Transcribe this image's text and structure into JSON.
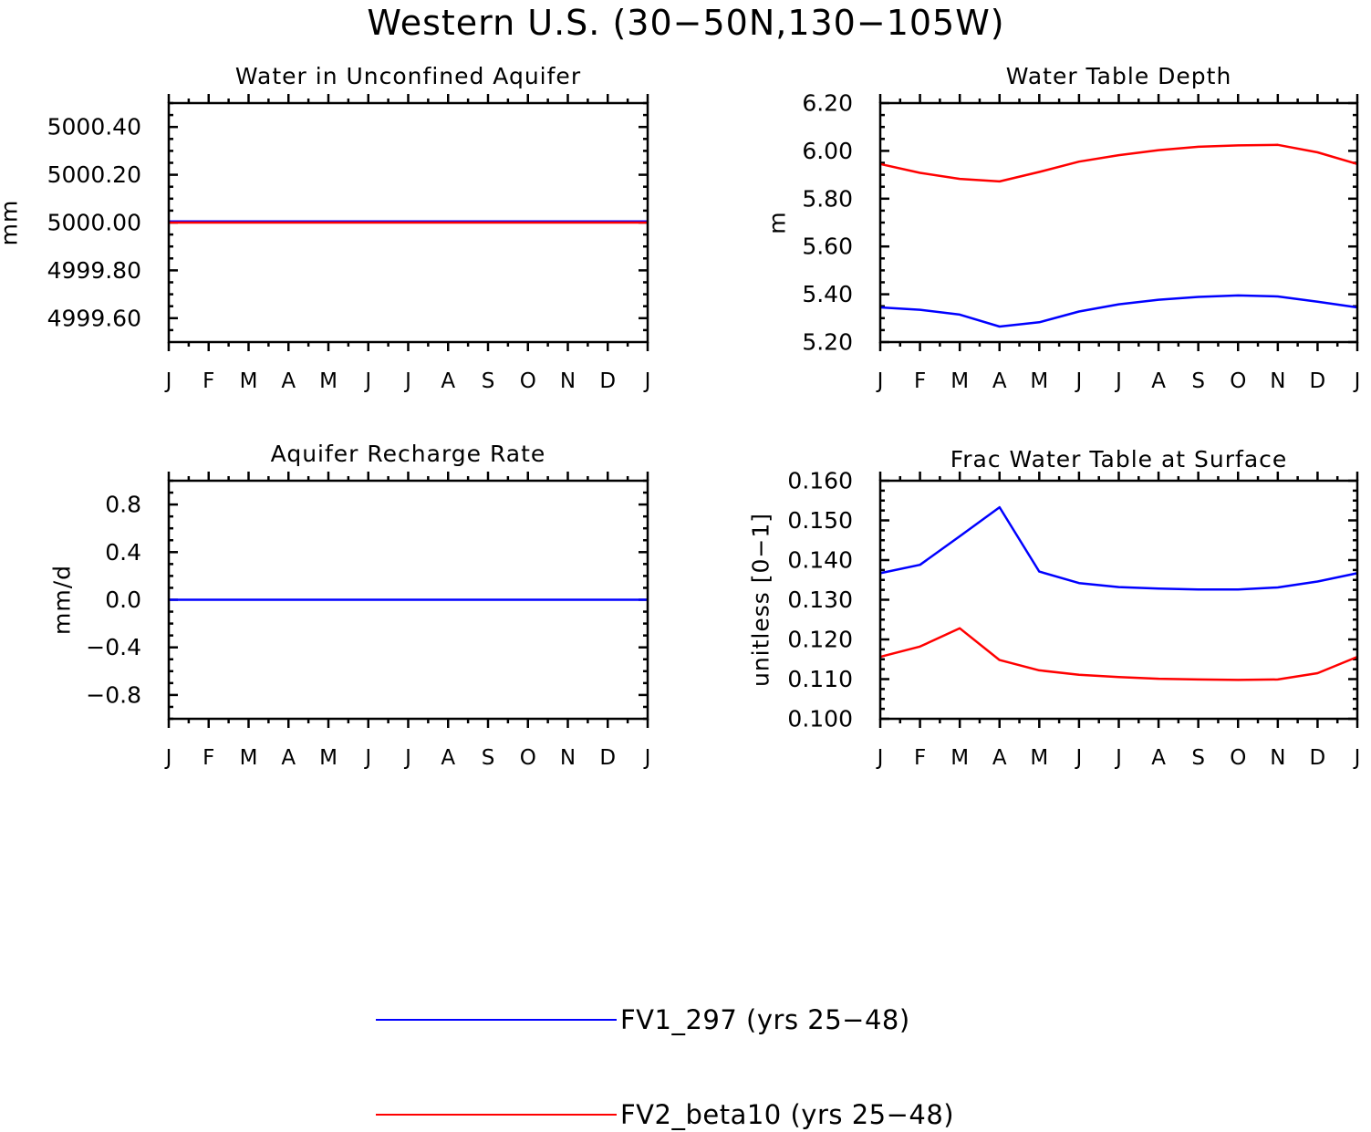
{
  "colors": {
    "series1": "#0000ff",
    "series2": "#ff0000",
    "axis": "#000000"
  },
  "chart_data": {
    "title": "Western U.S. (30−50N,130−105W)",
    "months": [
      "J",
      "F",
      "M",
      "A",
      "M",
      "J",
      "J",
      "A",
      "S",
      "O",
      "N",
      "D",
      "J"
    ],
    "legend": [
      {
        "label": "FV1_297 (yrs 25−48)",
        "color": "#0000ff"
      },
      {
        "label": "FV2_beta10 (yrs 25−48)",
        "color": "#ff0000"
      }
    ],
    "panels": [
      {
        "type": "line",
        "title": "Water in Unconfined Aquifer",
        "ylabel": "mm",
        "ylim": [
          4999.5,
          5000.5
        ],
        "yticks": [
          4999.6,
          4999.8,
          5000.0,
          5000.2,
          5000.4
        ],
        "yticklabels": [
          "4999.60",
          "4999.80",
          "5000.00",
          "5000.20",
          "5000.40"
        ],
        "series": [
          {
            "name": "FV1_297 (yrs 25-48)",
            "color": "#0000ff",
            "values": [
              5000.005,
              5000.005,
              5000.005,
              5000.005,
              5000.005,
              5000.005,
              5000.005,
              5000.005,
              5000.005,
              5000.005,
              5000.005,
              5000.005,
              5000.005
            ]
          },
          {
            "name": "FV2_beta10 (yrs 25-48)",
            "color": "#ff0000",
            "values": [
              5000.0,
              5000.0,
              5000.0,
              5000.0,
              5000.0,
              5000.0,
              5000.0,
              5000.0,
              5000.0,
              5000.0,
              5000.0,
              5000.0,
              5000.0
            ]
          }
        ]
      },
      {
        "type": "line",
        "title": "Water Table Depth",
        "ylabel": "m",
        "ylim": [
          5.2,
          6.2
        ],
        "yticks": [
          5.2,
          5.4,
          5.6,
          5.8,
          6.0,
          6.2
        ],
        "yticklabels": [
          "5.20",
          "5.40",
          "5.60",
          "5.80",
          "6.00",
          "6.20"
        ],
        "series": [
          {
            "name": "FV1_297 (yrs 25-48)",
            "color": "#0000ff",
            "values": [
              5.345,
              5.335,
              5.315,
              5.265,
              5.283,
              5.328,
              5.358,
              5.377,
              5.389,
              5.395,
              5.391,
              5.369,
              5.345
            ]
          },
          {
            "name": "FV2_beta10 (yrs 25-48)",
            "color": "#ff0000",
            "values": [
              5.945,
              5.908,
              5.883,
              5.872,
              5.912,
              5.955,
              5.982,
              6.003,
              6.017,
              6.023,
              6.025,
              5.994,
              5.945
            ]
          }
        ]
      },
      {
        "type": "line",
        "title": "Aquifer Recharge Rate",
        "ylabel": "mm/d",
        "ylim": [
          -1.0,
          1.0
        ],
        "yticks": [
          -0.8,
          -0.4,
          0.0,
          0.4,
          0.8
        ],
        "yticklabels": [
          "−0.8",
          "−0.4",
          "0.0",
          "0.4",
          "0.8"
        ],
        "series": [
          {
            "name": "FV1_297 (yrs 25-48)",
            "color": "#0000ff",
            "values": [
              0,
              0,
              0,
              0,
              0,
              0,
              0,
              0,
              0,
              0,
              0,
              0,
              0
            ]
          }
        ]
      },
      {
        "type": "line",
        "title": "Frac Water Table at Surface",
        "ylabel": "unitless [0−1]",
        "ylim": [
          0.1,
          0.16
        ],
        "yticks": [
          0.1,
          0.11,
          0.12,
          0.13,
          0.14,
          0.15,
          0.16
        ],
        "yticklabels": [
          "0.100",
          "0.110",
          "0.120",
          "0.130",
          "0.140",
          "0.150",
          "0.160"
        ],
        "series": [
          {
            "name": "FV1_297 (yrs 25-48)",
            "color": "#0000ff",
            "values": [
              0.1367,
              0.1388,
              0.146,
              0.1533,
              0.1371,
              0.1342,
              0.1332,
              0.1328,
              0.1326,
              0.1326,
              0.1331,
              0.1346,
              0.1367
            ]
          },
          {
            "name": "FV2_beta10 (yrs 25-48)",
            "color": "#ff0000",
            "values": [
              0.1156,
              0.1182,
              0.1228,
              0.1148,
              0.1122,
              0.1111,
              0.1105,
              0.1101,
              0.1099,
              0.1098,
              0.1099,
              0.1115,
              0.1156
            ]
          }
        ]
      }
    ]
  }
}
